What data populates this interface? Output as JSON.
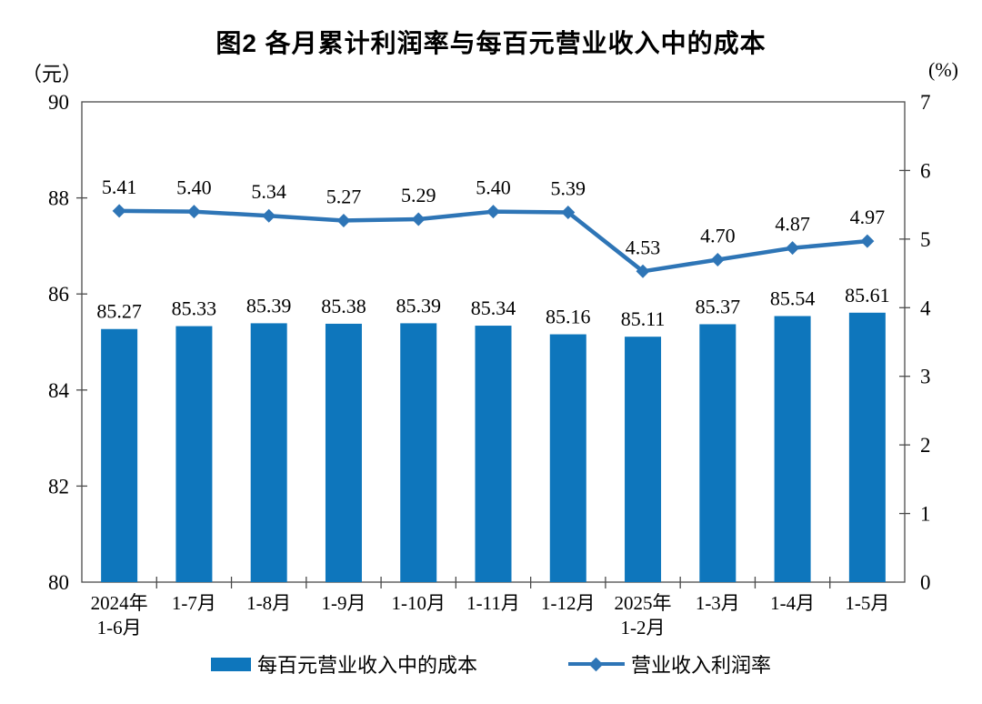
{
  "title": "图2 各月累计利润率与每百元营业收入中的成本",
  "left_axis": {
    "unit": "（元）",
    "ticks": [
      90,
      88,
      86,
      84,
      82,
      80
    ]
  },
  "right_axis": {
    "unit": "(%)",
    "ticks": [
      7,
      6,
      5,
      4,
      3,
      2,
      1,
      0
    ]
  },
  "colors": {
    "bar": "#0E76BC",
    "line": "#2E75B6",
    "axis": "#4a4a4a",
    "text": "#000000"
  },
  "legend": {
    "bar_label": "每百元营业收入中的成本",
    "line_label": "营业收入利润率"
  },
  "chart_data": {
    "type": "combo",
    "title": "图2 各月累计利润率与每百元营业收入中的成本",
    "categories": [
      "2024年\n1-6月",
      "1-7月",
      "1-8月",
      "1-9月",
      "1-10月",
      "1-11月",
      "1-12月",
      "2025年\n1-2月",
      "1-3月",
      "1-4月",
      "1-5月"
    ],
    "series": [
      {
        "name": "每百元营业收入中的成本",
        "type": "bar",
        "axis": "left",
        "color": "#0E76BC",
        "values": [
          85.27,
          85.33,
          85.39,
          85.38,
          85.39,
          85.34,
          85.16,
          85.11,
          85.37,
          85.54,
          85.61
        ]
      },
      {
        "name": "营业收入利润率",
        "type": "line",
        "axis": "right",
        "color": "#2E75B6",
        "marker": "diamond",
        "values": [
          5.41,
          5.4,
          5.34,
          5.27,
          5.29,
          5.4,
          5.39,
          4.53,
          4.7,
          4.87,
          4.97
        ]
      }
    ],
    "left_ylabel": "（元）",
    "right_ylabel": "(%)",
    "left_ylim": [
      80,
      90
    ],
    "right_ylim": [
      0,
      7
    ],
    "grid": false,
    "legend_position": "bottom",
    "data_labels": true,
    "label_decimals": 2
  }
}
